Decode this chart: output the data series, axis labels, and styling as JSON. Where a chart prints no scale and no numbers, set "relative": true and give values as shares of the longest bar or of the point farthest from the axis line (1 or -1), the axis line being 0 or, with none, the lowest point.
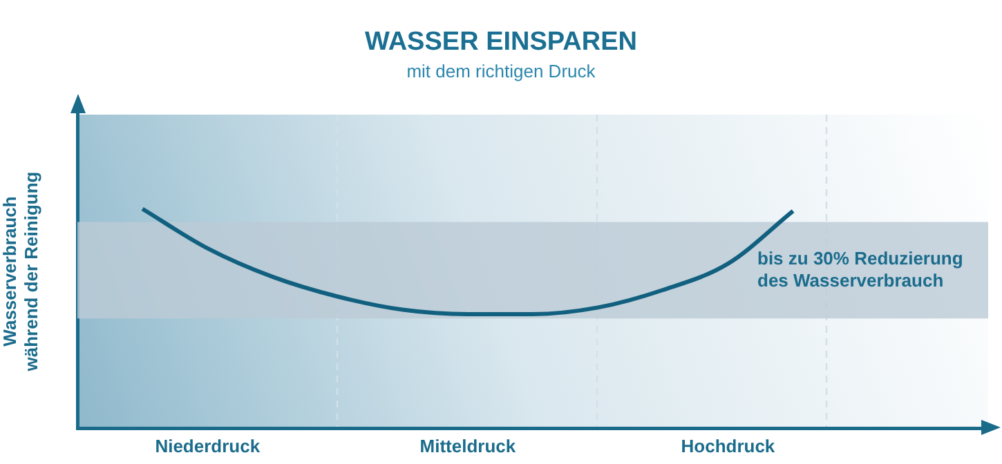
{
  "chart_data": {
    "type": "line",
    "title": "WASSER EINSPAREN",
    "subtitle": "mit dem richtigen Druck",
    "ylabel": "Wasserverbrauch während der Reinigung",
    "relative": true,
    "categories": [
      null,
      null,
      "Niederdruck",
      null,
      null,
      null,
      "Mitteldruck",
      null,
      null,
      null,
      "Hochdruck",
      null,
      null,
      null,
      null
    ],
    "values": [
      null,
      1,
      0.82,
      0.69,
      0.6,
      0.54,
      0.52,
      0.52,
      0.55,
      0.63,
      0.75,
      0.99,
      null,
      null,
      null
    ],
    "color": "#12607f",
    "legend": false,
    "marker": "none",
    "line_style": "solid",
    "bands": [
      {
        "axis": "y",
        "from": 0.5,
        "to": 0.94,
        "label": "bis zu 30% Reduzierung des Wasserverbrauch",
        "color": "#bccbd6"
      }
    ]
  }
}
